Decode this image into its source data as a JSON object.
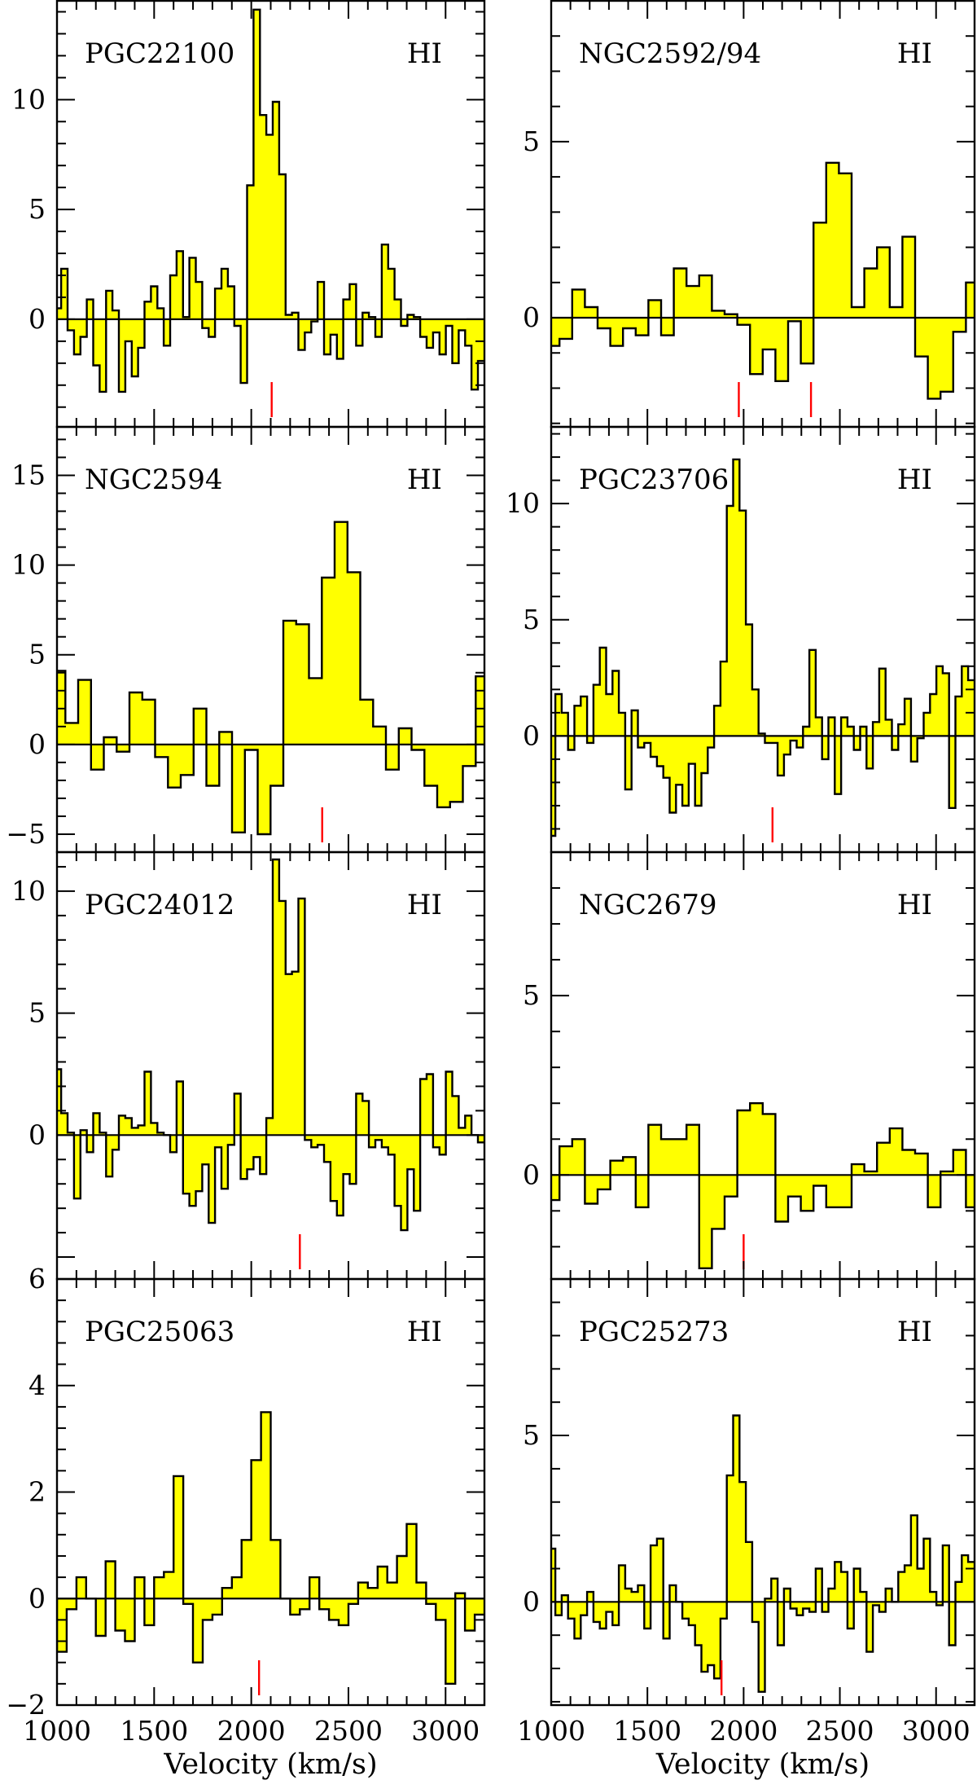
{
  "chart_data": [
    {
      "type": "step",
      "name": "PGC22100",
      "line": "HI",
      "ylim": [
        -4.9,
        14.5
      ],
      "yticks": [
        0,
        5,
        10
      ],
      "xlim": [
        1000,
        3200
      ],
      "markers": [
        2105
      ],
      "channel_width": 33,
      "x": [
        1005,
        1038,
        1071,
        1104,
        1137,
        1170,
        1203,
        1236,
        1269,
        1302,
        1335,
        1368,
        1401,
        1434,
        1467,
        1500,
        1533,
        1566,
        1599,
        1632,
        1665,
        1698,
        1731,
        1764,
        1797,
        1830,
        1863,
        1896,
        1929,
        1962,
        1995,
        2028,
        2061,
        2094,
        2127,
        2160,
        2193,
        2226,
        2259,
        2292,
        2325,
        2358,
        2391,
        2424,
        2457,
        2490,
        2523,
        2556,
        2589,
        2622,
        2655,
        2688,
        2721,
        2754,
        2787,
        2820,
        2853,
        2886,
        2919,
        2952,
        2985,
        3018,
        3051,
        3084,
        3117,
        3150,
        3183
      ],
      "y": [
        0.5,
        2.3,
        -0.5,
        -1.6,
        -0.8,
        0.9,
        -2.1,
        -3.3,
        1.3,
        0.4,
        -3.3,
        -1.0,
        -2.6,
        -1.3,
        0.8,
        1.5,
        0.5,
        -1.2,
        2.0,
        3.1,
        0.1,
        2.8,
        1.7,
        -0.4,
        -0.8,
        1.4,
        2.3,
        1.5,
        -0.3,
        -2.9,
        6.1,
        14.1,
        9.3,
        8.4,
        9.9,
        6.6,
        0.2,
        0.3,
        -1.4,
        -0.6,
        -0.1,
        1.7,
        -1.6,
        -0.7,
        -1.8,
        0.9,
        1.6,
        -1.2,
        0.3,
        0.1,
        -0.8,
        3.4,
        2.3,
        0.9,
        -0.3,
        0.2,
        0.1,
        -0.8,
        -1.3,
        -0.6,
        -1.6,
        -0.3,
        -2.0,
        -0.5,
        -1.2,
        -3.2,
        -1.9
      ]
    },
    {
      "type": "step",
      "name": "NGC2592/94",
      "line": "HI",
      "ylim": [
        -3.1,
        9.0
      ],
      "yticks": [
        0,
        5
      ],
      "xlim": [
        1000,
        3200
      ],
      "markers": [
        1975,
        2350
      ],
      "channel_width": 66,
      "x": [
        1010,
        1076,
        1142,
        1208,
        1274,
        1340,
        1406,
        1472,
        1538,
        1604,
        1670,
        1736,
        1802,
        1868,
        1934,
        2000,
        2066,
        2132,
        2198,
        2264,
        2330,
        2396,
        2462,
        2528,
        2594,
        2660,
        2726,
        2792,
        2858,
        2924,
        2990,
        3056,
        3122,
        3188
      ],
      "y": [
        -0.8,
        -0.6,
        0.8,
        0.3,
        -0.3,
        -0.8,
        -0.3,
        -0.5,
        0.5,
        -0.5,
        1.4,
        0.9,
        1.2,
        0.2,
        0.1,
        -0.2,
        -1.6,
        -0.9,
        -1.8,
        -0.1,
        -1.3,
        2.7,
        4.4,
        4.1,
        0.3,
        1.4,
        2.0,
        0.3,
        2.3,
        -1.1,
        -2.3,
        -2.1,
        -0.4,
        1.0
      ]
    },
    {
      "type": "step",
      "name": "NGC2594",
      "line": "HI",
      "ylim": [
        -6.0,
        17.7
      ],
      "yticks": [
        -5,
        0,
        5,
        10,
        15
      ],
      "xlim": [
        1000,
        3200
      ],
      "markers": [
        2365
      ],
      "channel_width": 66,
      "x": [
        1010,
        1076,
        1142,
        1208,
        1274,
        1340,
        1406,
        1472,
        1538,
        1604,
        1670,
        1736,
        1802,
        1868,
        1934,
        2000,
        2066,
        2132,
        2198,
        2264,
        2330,
        2396,
        2462,
        2528,
        2594,
        2660,
        2726,
        2792,
        2858,
        2924,
        2990,
        3056,
        3122,
        3188
      ],
      "y": [
        4.1,
        1.2,
        3.6,
        -1.4,
        0.4,
        -0.4,
        2.9,
        2.5,
        -0.7,
        -2.4,
        -1.7,
        2.0,
        -2.3,
        0.7,
        -4.9,
        -0.3,
        -5.0,
        -2.3,
        6.9,
        6.7,
        3.7,
        9.3,
        12.4,
        9.6,
        2.5,
        1.0,
        -1.4,
        0.9,
        -0.3,
        -2.3,
        -3.5,
        -3.2,
        -1.2,
        3.8
      ]
    },
    {
      "type": "step",
      "name": "PGC23706",
      "line": "HI",
      "ylim": [
        -5.0,
        13.3
      ],
      "yticks": [
        0,
        5,
        10
      ],
      "xlim": [
        1000,
        3200
      ],
      "markers": [
        2150
      ],
      "channel_width": 33,
      "x": [
        1005,
        1038,
        1071,
        1104,
        1137,
        1170,
        1203,
        1236,
        1269,
        1302,
        1335,
        1368,
        1401,
        1434,
        1467,
        1500,
        1533,
        1566,
        1599,
        1632,
        1665,
        1698,
        1731,
        1764,
        1797,
        1830,
        1863,
        1896,
        1929,
        1962,
        1995,
        2028,
        2061,
        2094,
        2127,
        2160,
        2193,
        2226,
        2259,
        2292,
        2325,
        2358,
        2391,
        2424,
        2457,
        2490,
        2523,
        2556,
        2589,
        2622,
        2655,
        2688,
        2721,
        2754,
        2787,
        2820,
        2853,
        2886,
        2919,
        2952,
        2985,
        3018,
        3051,
        3084,
        3117,
        3150,
        3183
      ],
      "y": [
        -4.3,
        1.8,
        1.0,
        -0.6,
        1.3,
        1.7,
        -0.3,
        2.2,
        3.8,
        1.8,
        2.8,
        1.0,
        -2.3,
        1.1,
        -0.5,
        -0.3,
        -0.9,
        -1.3,
        -1.8,
        -3.3,
        -2.1,
        -3.0,
        -1.2,
        -3.0,
        -1.6,
        -0.5,
        1.3,
        3.2,
        9.9,
        11.9,
        9.7,
        4.8,
        2.0,
        0.1,
        -0.3,
        -0.3,
        -1.7,
        -0.8,
        -0.2,
        -0.5,
        0.4,
        3.7,
        0.8,
        -1.0,
        0.8,
        -2.5,
        0.8,
        0.4,
        -0.6,
        0.4,
        -1.4,
        0.6,
        2.9,
        0.7,
        -0.6,
        0.5,
        1.6,
        -1.1,
        -0.1,
        1.0,
        1.8,
        3.0,
        2.7,
        -3.1,
        1.7,
        3.0,
        2.4
      ]
    },
    {
      "type": "step",
      "name": "PGC24012",
      "line": "HI",
      "ylim": [
        -5.9,
        11.6
      ],
      "yticks": [
        0,
        5,
        10
      ],
      "xlim": [
        1000,
        3200
      ],
      "markers": [
        2250
      ],
      "channel_width": 33,
      "x": [
        1005,
        1038,
        1071,
        1104,
        1137,
        1170,
        1203,
        1236,
        1269,
        1302,
        1335,
        1368,
        1401,
        1434,
        1467,
        1500,
        1533,
        1566,
        1599,
        1632,
        1665,
        1698,
        1731,
        1764,
        1797,
        1830,
        1863,
        1896,
        1929,
        1962,
        1995,
        2028,
        2061,
        2094,
        2127,
        2160,
        2193,
        2226,
        2259,
        2292,
        2325,
        2358,
        2391,
        2424,
        2457,
        2490,
        2523,
        2556,
        2589,
        2622,
        2655,
        2688,
        2721,
        2754,
        2787,
        2820,
        2853,
        2886,
        2919,
        2952,
        2985,
        3018,
        3051,
        3084,
        3117,
        3150,
        3183
      ],
      "y": [
        2.7,
        0.9,
        0.1,
        -2.6,
        0.2,
        -0.7,
        0.9,
        0.1,
        -1.7,
        -0.6,
        0.8,
        0.7,
        0.3,
        0.4,
        2.6,
        0.5,
        0.1,
        0.0,
        -0.7,
        2.2,
        -2.4,
        -2.9,
        -2.3,
        -1.2,
        -3.6,
        -0.5,
        -2.2,
        -0.4,
        1.7,
        -1.8,
        -1.4,
        -0.9,
        -1.6,
        0.7,
        11.3,
        9.6,
        6.6,
        6.7,
        9.7,
        -0.2,
        -0.5,
        -0.4,
        -1.1,
        -2.7,
        -3.3,
        -1.6,
        -2.0,
        1.7,
        1.4,
        -0.5,
        -0.2,
        -0.5,
        -0.8,
        -2.9,
        -3.9,
        -1.4,
        -3.1,
        2.3,
        2.5,
        -0.5,
        -0.8,
        2.6,
        1.6,
        0.3,
        0.8,
        0.0,
        -0.3
      ]
    },
    {
      "type": "step",
      "name": "NGC2679",
      "line": "HI",
      "ylim": [
        -2.9,
        9.0
      ],
      "yticks": [
        0,
        5
      ],
      "xlim": [
        1000,
        3200
      ],
      "markers": [
        2000
      ],
      "channel_width": 66,
      "x": [
        1010,
        1076,
        1142,
        1208,
        1274,
        1340,
        1406,
        1472,
        1538,
        1604,
        1670,
        1736,
        1802,
        1868,
        1934,
        2000,
        2066,
        2132,
        2198,
        2264,
        2330,
        2396,
        2462,
        2528,
        2594,
        2660,
        2726,
        2792,
        2858,
        2924,
        2990,
        3056,
        3122,
        3188
      ],
      "y": [
        -0.7,
        0.8,
        1.0,
        -0.8,
        -0.4,
        0.4,
        0.5,
        -0.9,
        1.4,
        1.0,
        1.0,
        1.4,
        -2.6,
        -1.5,
        -0.6,
        1.8,
        2.0,
        1.7,
        -1.3,
        -0.6,
        -1.0,
        -0.3,
        -0.9,
        -0.9,
        0.3,
        0.1,
        0.9,
        1.3,
        0.7,
        0.6,
        -0.9,
        0.1,
        0.7,
        -0.9
      ]
    },
    {
      "type": "step",
      "name": "PGC25063",
      "line": "HI",
      "ylim": [
        -2.0,
        6.0
      ],
      "yticks": [
        -2,
        0,
        2,
        4,
        6
      ],
      "xlim": [
        1000,
        3200
      ],
      "markers": [
        2040
      ],
      "channel_width": 50,
      "x": [
        1025,
        1075,
        1125,
        1175,
        1225,
        1275,
        1325,
        1375,
        1425,
        1475,
        1525,
        1575,
        1625,
        1675,
        1725,
        1775,
        1825,
        1875,
        1925,
        1975,
        2025,
        2075,
        2125,
        2175,
        2225,
        2275,
        2325,
        2375,
        2425,
        2475,
        2525,
        2575,
        2625,
        2675,
        2725,
        2775,
        2825,
        2875,
        2925,
        2975,
        3025,
        3075,
        3125,
        3175
      ],
      "y": [
        -1.0,
        -0.2,
        0.4,
        0.0,
        -0.7,
        0.7,
        -0.6,
        -0.8,
        0.4,
        -0.5,
        0.4,
        0.5,
        2.3,
        -0.1,
        -1.2,
        -0.4,
        -0.3,
        0.2,
        0.4,
        1.1,
        2.6,
        3.5,
        1.1,
        0.0,
        -0.3,
        -0.2,
        0.4,
        -0.2,
        -0.4,
        -0.5,
        -0.1,
        0.3,
        0.2,
        0.6,
        0.3,
        0.8,
        1.4,
        0.3,
        -0.1,
        -0.4,
        -1.6,
        0.1,
        -0.6,
        -0.3
      ]
    },
    {
      "type": "step",
      "name": "PGC25273",
      "line": "HI",
      "ylim": [
        -3.1,
        9.7
      ],
      "yticks": [
        0,
        5
      ],
      "xlim": [
        1000,
        3200
      ],
      "markers": [
        1885
      ],
      "channel_width": 33,
      "x": [
        1005,
        1038,
        1071,
        1104,
        1137,
        1170,
        1203,
        1236,
        1269,
        1302,
        1335,
        1368,
        1401,
        1434,
        1467,
        1500,
        1533,
        1566,
        1599,
        1632,
        1665,
        1698,
        1731,
        1764,
        1797,
        1830,
        1863,
        1896,
        1929,
        1962,
        1995,
        2028,
        2061,
        2094,
        2127,
        2160,
        2193,
        2226,
        2259,
        2292,
        2325,
        2358,
        2391,
        2424,
        2457,
        2490,
        2523,
        2556,
        2589,
        2622,
        2655,
        2688,
        2721,
        2754,
        2787,
        2820,
        2853,
        2886,
        2919,
        2952,
        2985,
        3018,
        3051,
        3084,
        3117,
        3150,
        3183
      ],
      "y": [
        1.6,
        -0.4,
        0.2,
        -0.5,
        -1.1,
        -0.4,
        0.3,
        -0.6,
        -0.8,
        -0.3,
        -0.7,
        1.1,
        0.4,
        0.3,
        0.5,
        -0.8,
        1.7,
        1.9,
        -1.1,
        0.5,
        0.0,
        -0.5,
        -0.7,
        -1.3,
        -2.1,
        -1.9,
        -2.3,
        -0.5,
        3.8,
        5.6,
        3.6,
        1.8,
        -0.6,
        -2.7,
        0.1,
        0.7,
        -1.3,
        0.4,
        -0.2,
        -0.4,
        -0.2,
        -0.3,
        1.0,
        -0.3,
        0.4,
        1.2,
        0.9,
        -0.8,
        1.0,
        0.3,
        -1.5,
        -0.1,
        -0.3,
        0.4,
        0.0,
        0.9,
        1.1,
        2.6,
        1.0,
        1.9,
        0.3,
        -0.1,
        1.7,
        -1.3,
        0.6,
        1.4,
        1.2
      ]
    }
  ],
  "axes": {
    "xticks": [
      1000,
      1500,
      2000,
      2500,
      3000
    ],
    "xtick_labels": [
      "1000",
      "1500",
      "2000",
      "2500",
      "3000"
    ],
    "xlabel": "Velocity (km/s)"
  },
  "colors": {
    "fill": "#ffff00",
    "stroke": "#000000",
    "marker": "#ff0000"
  }
}
